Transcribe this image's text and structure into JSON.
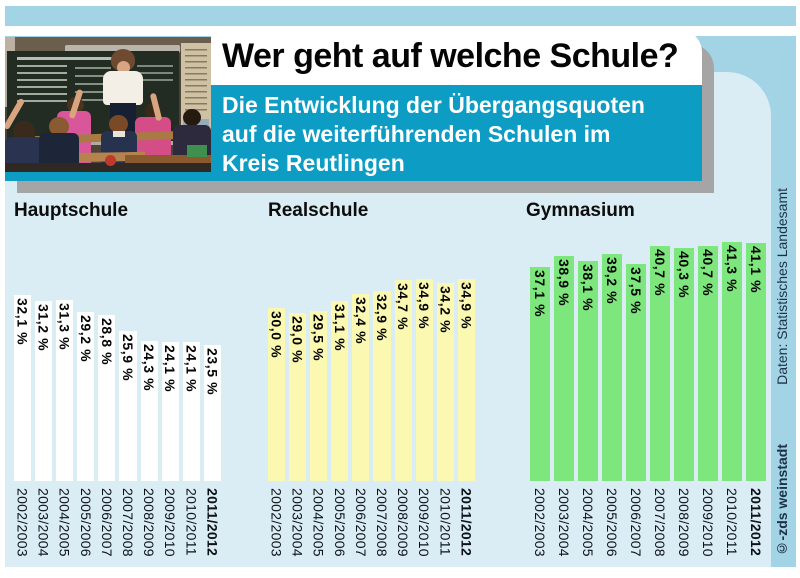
{
  "header": {
    "title": "Wer geht auf welche Schule?",
    "subtitle": "Die Entwicklung der Übergangsquoten\nauf die weiterführenden Schulen im\nKreis Reutlingen"
  },
  "colors": {
    "background_blue": "#a2d4e5",
    "card_blue": "#daecf4",
    "subtitle_teal": "#0c9cc4",
    "shadow_gray": "#a5a5a5",
    "hauptschule_bar": "#ffffff",
    "realschule_bar": "#fbf8b2",
    "gymnasium_bar": "#7de67d"
  },
  "chart_data": {
    "type": "bar",
    "title": "Wer geht auf welche Schule?",
    "subtitle": "Die Entwicklung der Übergangsquoten auf die weiterführenden Schulen im Kreis Reutlingen",
    "categories": [
      "2002/2003",
      "2003/2004",
      "2004/2005",
      "2005/2006",
      "2006/2007",
      "2007/2008",
      "2008/2009",
      "2009/2010",
      "2010/2011",
      "2011/2012"
    ],
    "series": [
      {
        "name": "Hauptschule",
        "color": "#ffffff",
        "values": [
          32.1,
          31.2,
          31.3,
          29.2,
          28.8,
          25.9,
          24.3,
          24.1,
          24.1,
          23.5
        ]
      },
      {
        "name": "Realschule",
        "color": "#fbf8b2",
        "values": [
          30.0,
          29.0,
          29.5,
          31.1,
          32.4,
          32.9,
          34.7,
          34.9,
          34.2,
          34.9
        ]
      },
      {
        "name": "Gymnasium",
        "color": "#7de67d",
        "values": [
          37.1,
          38.9,
          38.1,
          39.2,
          37.5,
          40.7,
          40.3,
          40.7,
          41.3,
          41.1
        ]
      }
    ],
    "value_suffix": " %",
    "decimal_separator": ",",
    "ylim": [
      0,
      45
    ],
    "grid": false,
    "legend": "none",
    "axes_visible": false,
    "highlight_last_category": true,
    "bar_label_rotation": 90,
    "category_label_rotation": 90
  },
  "credits": {
    "source": "Daten: Statistisches Landesamt",
    "copyright": "©-zds weinstadt"
  }
}
